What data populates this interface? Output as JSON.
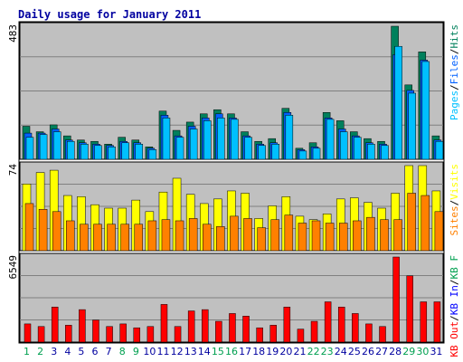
{
  "title": "Daily usage for January 2011",
  "colors": {
    "background": "#c0c0c0",
    "title": "#0000a0",
    "grid": "#808080",
    "hits": "#00805c",
    "files": "#0060ff",
    "pages": "#00c0ff",
    "sites": "#ff8000",
    "visits": "#ffff00",
    "kbin": "#0000ff",
    "kbout": "#00a050",
    "kbf": "#ff0000",
    "weekend_label": "#00a050",
    "weekday_label": "#0000a0"
  },
  "chart_data": [
    {
      "type": "bar",
      "panel": "hits-files-pages",
      "categories": [
        "1",
        "2",
        "3",
        "4",
        "5",
        "6",
        "7",
        "8",
        "9",
        "10",
        "11",
        "12",
        "13",
        "14",
        "15",
        "16",
        "17",
        "18",
        "19",
        "20",
        "21",
        "22",
        "23",
        "24",
        "25",
        "26",
        "27",
        "28",
        "29",
        "30",
        "31"
      ],
      "weekend_days": [
        "1",
        "2",
        "8",
        "9",
        "15",
        "16",
        "22",
        "23",
        "29",
        "30"
      ],
      "max_label": "483",
      "ylim": [
        0,
        483
      ],
      "legend": [
        "Hits",
        "/",
        "Files",
        "/",
        "Pages"
      ],
      "series": [
        {
          "name": "Hits",
          "values": [
            120,
            100,
            125,
            85,
            70,
            65,
            55,
            80,
            70,
            45,
            175,
            105,
            135,
            165,
            180,
            165,
            100,
            65,
            75,
            185,
            40,
            60,
            170,
            140,
            100,
            75,
            65,
            483,
            270,
            390,
            85
          ]
        },
        {
          "name": "Files",
          "values": [
            95,
            95,
            110,
            70,
            60,
            55,
            50,
            65,
            60,
            40,
            160,
            85,
            120,
            150,
            165,
            150,
            85,
            55,
            60,
            170,
            35,
            45,
            150,
            110,
            85,
            60,
            55,
            380,
            250,
            360,
            70
          ]
        },
        {
          "name": "Pages",
          "values": [
            80,
            90,
            100,
            65,
            55,
            50,
            45,
            60,
            55,
            35,
            150,
            80,
            110,
            140,
            150,
            145,
            80,
            50,
            55,
            160,
            30,
            40,
            145,
            100,
            80,
            55,
            50,
            410,
            240,
            355,
            65
          ]
        }
      ]
    },
    {
      "type": "bar",
      "panel": "visits-sites",
      "categories": [
        "1",
        "2",
        "3",
        "4",
        "5",
        "6",
        "7",
        "8",
        "9",
        "10",
        "11",
        "12",
        "13",
        "14",
        "15",
        "16",
        "17",
        "18",
        "19",
        "20",
        "21",
        "22",
        "23",
        "24",
        "25",
        "26",
        "27",
        "28",
        "29",
        "30",
        "31"
      ],
      "max_label": "74",
      "ylim": [
        0,
        74
      ],
      "legend": [
        "Visits",
        "/",
        "Sites"
      ],
      "series": [
        {
          "name": "Visits",
          "values": [
            58,
            68,
            70,
            48,
            47,
            40,
            37,
            37,
            44,
            34,
            51,
            63,
            49,
            41,
            45,
            52,
            50,
            28,
            39,
            47,
            30,
            27,
            32,
            45,
            46,
            42,
            37,
            50,
            74,
            74,
            52
          ]
        },
        {
          "name": "Sites",
          "values": [
            41,
            36,
            34,
            26,
            23,
            23,
            23,
            23,
            23,
            26,
            27,
            26,
            28,
            23,
            21,
            30,
            28,
            20,
            27,
            31,
            24,
            26,
            24,
            24,
            26,
            29,
            27,
            27,
            50,
            48,
            34
          ]
        }
      ]
    },
    {
      "type": "bar",
      "panel": "kbytes",
      "categories": [
        "1",
        "2",
        "3",
        "4",
        "5",
        "6",
        "7",
        "8",
        "9",
        "10",
        "11",
        "12",
        "13",
        "14",
        "15",
        "16",
        "17",
        "18",
        "19",
        "20",
        "21",
        "22",
        "23",
        "24",
        "25",
        "26",
        "27",
        "28",
        "29",
        "30",
        "31"
      ],
      "max_label": "6549",
      "ylim": [
        0,
        6549
      ],
      "legend": [
        "KB F",
        "/",
        "KB In",
        "/",
        "KB Out"
      ],
      "series": [
        {
          "name": "KB F",
          "values": [
            1400,
            1200,
            2700,
            1300,
            2500,
            1700,
            1200,
            1400,
            1100,
            1200,
            2900,
            1200,
            2400,
            2500,
            1600,
            2200,
            2000,
            1100,
            1300,
            2700,
            1000,
            1600,
            3100,
            2700,
            2200,
            1400,
            1200,
            6549,
            5100,
            3100,
            3100
          ]
        }
      ]
    }
  ]
}
